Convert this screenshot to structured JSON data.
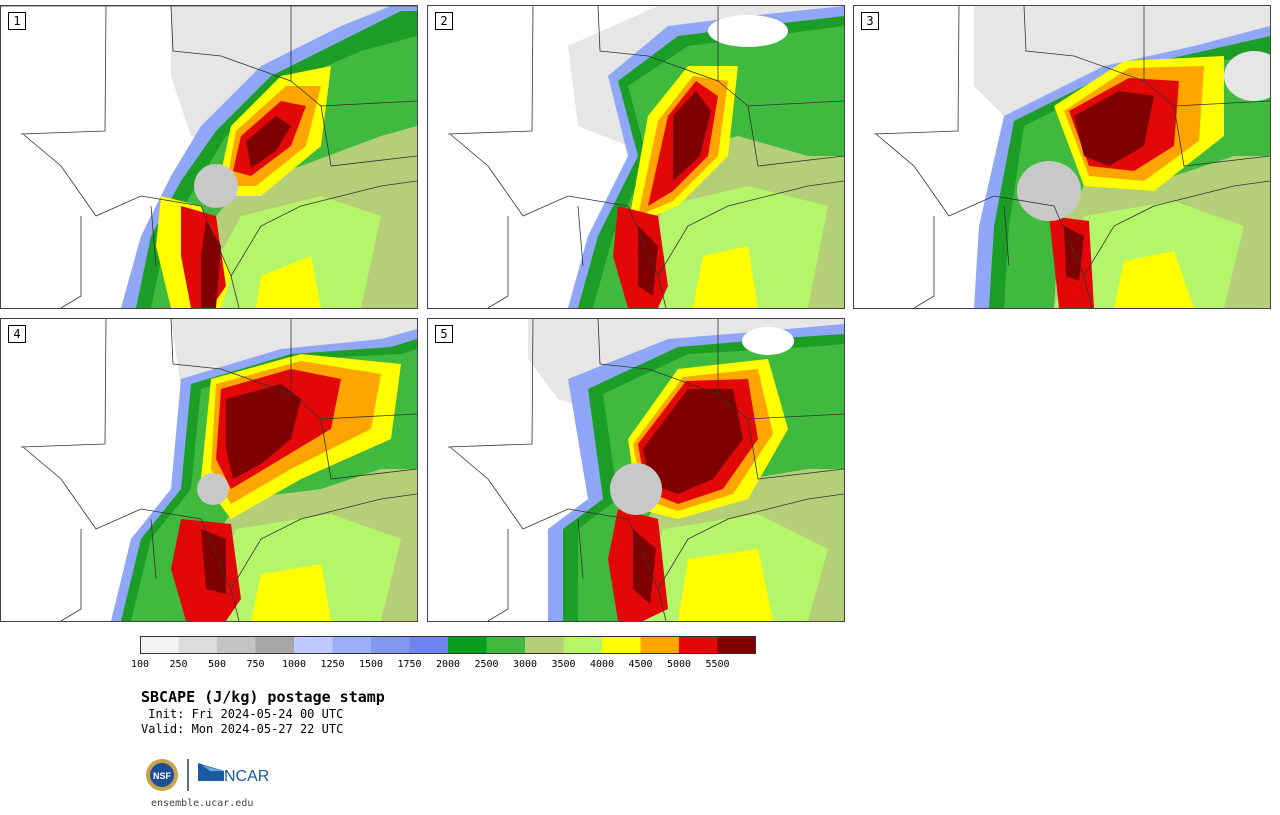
{
  "title": "SBCAPE (J/kg) postage stamp",
  "init": " Init: Fri 2024-05-24 00 UTC",
  "valid": "Valid: Mon 2024-05-27 22 UTC",
  "site": "ensemble.ucar.edu",
  "logos": {
    "nsf": "NSF",
    "ncar": "NCAR"
  },
  "members": [
    "1",
    "2",
    "3",
    "4",
    "5"
  ],
  "colorbar": {
    "levels": [
      "100",
      "250",
      "500",
      "750",
      "1000",
      "1250",
      "1500",
      "1750",
      "2000",
      "2500",
      "3000",
      "3500",
      "4000",
      "4500",
      "5000",
      "5500"
    ],
    "colors": [
      "#f2f2f2",
      "#dcdcdc",
      "#c4c4c4",
      "#a7a7a7",
      "#bec9ff",
      "#99b0f8",
      "#8297f0",
      "#6e84f2",
      "#089c1c",
      "#3fba3f",
      "#b4cf77",
      "#b4f56a",
      "#ffff00",
      "#ffa500",
      "#e30808",
      "#7f0000"
    ]
  },
  "map_field_colors": {
    "white": "#ffffff",
    "lightgray": "#e6e6e6",
    "gray": "#c8c8c8",
    "blue": "#8fa7f6",
    "darkgreen": "#1c9e26",
    "green": "#3fba3f",
    "olive": "#b4cf77",
    "lime": "#b4f56a",
    "yellow": "#ffff00",
    "orange": "#ffa500",
    "red": "#e30808",
    "darkred": "#7f0000"
  }
}
